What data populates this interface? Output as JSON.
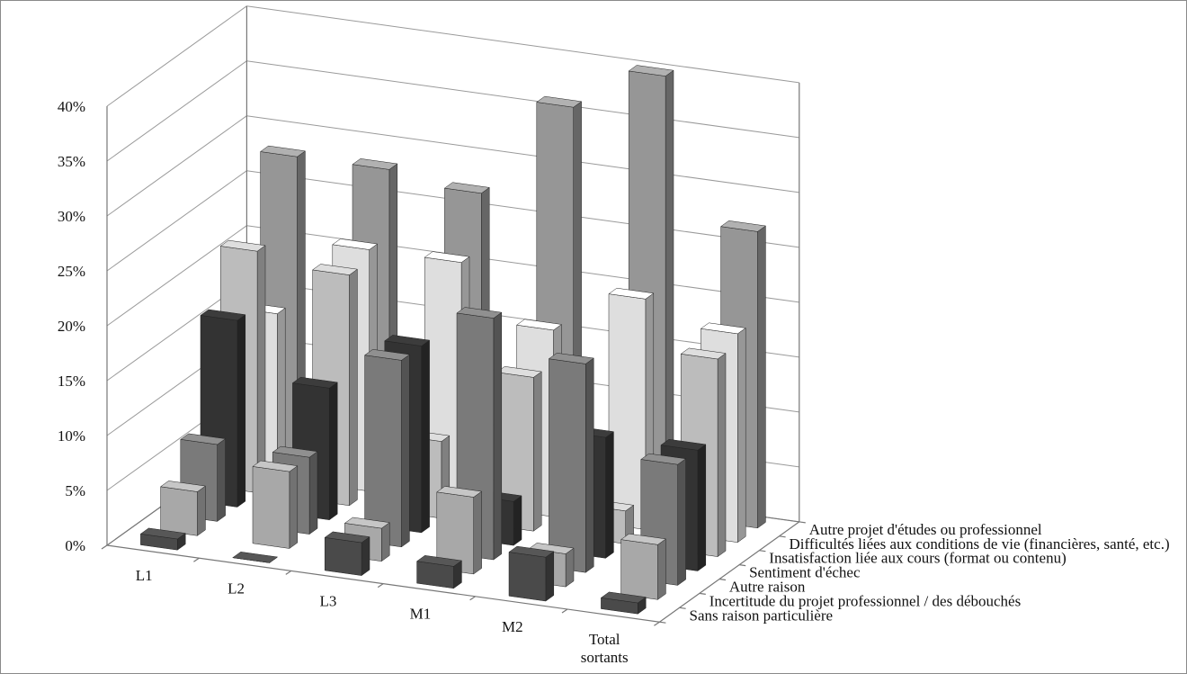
{
  "chart_data": {
    "type": "bar",
    "categories": [
      "L1",
      "L2",
      "L3",
      "M1",
      "M2",
      "Total sortants"
    ],
    "yticks": [
      "0%",
      "5%",
      "10%",
      "15%",
      "20%",
      "25%",
      "30%",
      "35%",
      "40%"
    ],
    "ylim": [
      0,
      40
    ],
    "grid": true,
    "series": [
      {
        "name": "Sans raison particulière",
        "values": [
          1,
          0,
          3,
          2,
          4,
          1
        ],
        "color": "#4a4a4a"
      },
      {
        "name": "Incertitude du projet professionnel / des débouchés",
        "values": [
          4,
          7,
          3,
          7,
          3,
          5
        ],
        "color": "#a8a8a8"
      },
      {
        "name": "Autre raison",
        "values": [
          7,
          7,
          17,
          22,
          19,
          11
        ],
        "color": "#7a7a7a"
      },
      {
        "name": "Sentiment d'échec",
        "values": [
          17,
          12,
          17,
          4,
          11,
          11
        ],
        "color": "#333333"
      },
      {
        "name": "Insatisfaction liée aux cours (format ou contenu)",
        "values": [
          22,
          21,
          7,
          14,
          3,
          18
        ],
        "color": "#bcbcbc"
      },
      {
        "name": "Difficultés liées aux conditions de vie (financières, santé, etc.)",
        "values": [
          15,
          22,
          22,
          17,
          21,
          19
        ],
        "color": "#dedede"
      },
      {
        "name": "Autre projet d'études ou professionnel",
        "values": [
          28,
          28,
          27,
          36,
          40,
          27
        ],
        "color": "#969696"
      }
    ]
  }
}
